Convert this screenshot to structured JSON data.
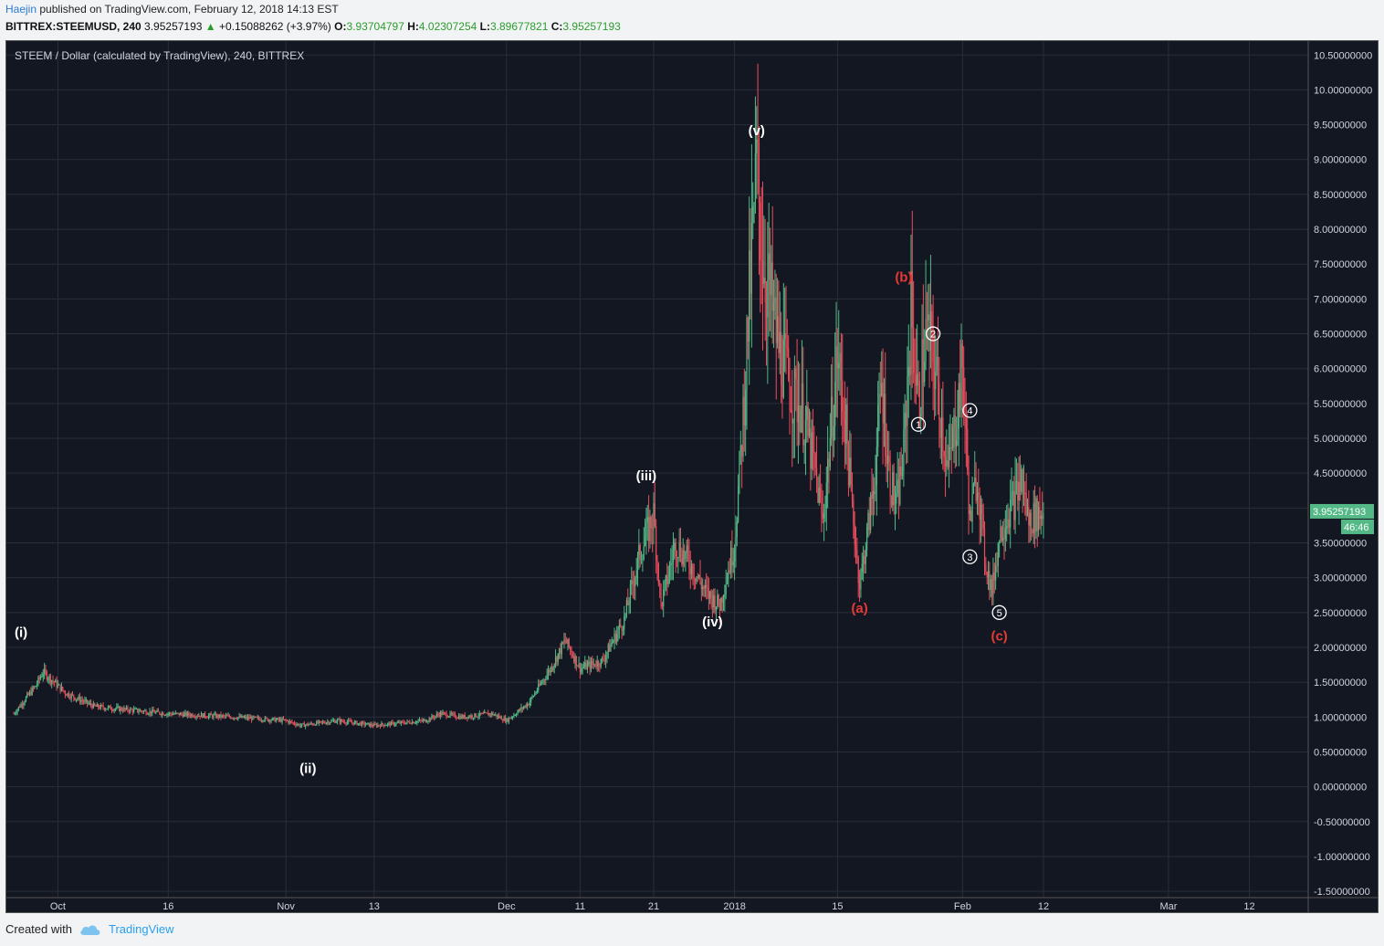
{
  "header": {
    "author": "Haejin",
    "published_text": "published on TradingView.com, February 12, 2018 14:13 EST"
  },
  "ohlc": {
    "symbol": "BITTREX:STEEMUSD, 240",
    "last": "3.95257193",
    "arrow": "▲",
    "change": "+0.15088262 (+3.97%)",
    "o_label": "O:",
    "o": "3.93704797",
    "h_label": "H:",
    "h": "4.02307254",
    "l_label": "L:",
    "l": "3.89677821",
    "c_label": "C:",
    "c": "3.95257193"
  },
  "footer": {
    "created_with": "Created with",
    "brand": "TradingView",
    "logo_icon": "tradingview-cloud-icon"
  },
  "colors": {
    "background": "#131722",
    "grid": "#2a2e39",
    "up": "#53b987",
    "down": "#eb4d5c",
    "wave_white": "#ffffff",
    "wave_red": "#e53935",
    "price_tag": "#53b987"
  },
  "chart_data": {
    "type": "candlestick",
    "title": "STEEM / Dollar (calculated by TradingView), 240, BITTREX",
    "ylim": [
      -1.8,
      10.7
    ],
    "y_ticks": [
      "10.50000000",
      "10.00000000",
      "9.50000000",
      "9.00000000",
      "8.50000000",
      "8.00000000",
      "7.50000000",
      "7.00000000",
      "6.50000000",
      "6.00000000",
      "5.50000000",
      "5.00000000",
      "4.50000000",
      "4.00000000",
      "3.50000000",
      "3.00000000",
      "2.50000000",
      "2.00000000",
      "1.50000000",
      "1.00000000",
      "0.50000000",
      "0.00000000",
      "-0.50000000",
      "-1.00000000",
      "-1.50000000"
    ],
    "x_ticks": [
      {
        "label": "Oct",
        "date": "2017-10-01"
      },
      {
        "label": "16",
        "date": "2017-10-16"
      },
      {
        "label": "Nov",
        "date": "2017-11-01"
      },
      {
        "label": "13",
        "date": "2017-11-13"
      },
      {
        "label": "Dec",
        "date": "2017-12-01"
      },
      {
        "label": "11",
        "date": "2017-12-11"
      },
      {
        "label": "21",
        "date": "2017-12-21"
      },
      {
        "label": "2018",
        "date": "2018-01-01"
      },
      {
        "label": "15",
        "date": "2018-01-15"
      },
      {
        "label": "Feb",
        "date": "2018-02-01"
      },
      {
        "label": "12",
        "date": "2018-02-12"
      },
      {
        "label": "Mar",
        "date": "2018-03-01"
      },
      {
        "label": "12",
        "date": "2018-03-12"
      }
    ],
    "price_path": [
      [
        "2017-09-25",
        1.05
      ],
      [
        "2017-09-28",
        1.45
      ],
      [
        "2017-09-29",
        1.65
      ],
      [
        "2017-10-02",
        1.35
      ],
      [
        "2017-10-06",
        1.15
      ],
      [
        "2017-10-16",
        1.05
      ],
      [
        "2017-10-25",
        1.0
      ],
      [
        "2017-11-01",
        0.95
      ],
      [
        "2017-11-03",
        0.88
      ],
      [
        "2017-11-08",
        0.95
      ],
      [
        "2017-11-13",
        0.88
      ],
      [
        "2017-11-20",
        0.95
      ],
      [
        "2017-11-22",
        1.05
      ],
      [
        "2017-11-25",
        1.0
      ],
      [
        "2017-11-29",
        1.05
      ],
      [
        "2017-12-01",
        0.95
      ],
      [
        "2017-12-04",
        1.2
      ],
      [
        "2017-12-07",
        1.7
      ],
      [
        "2017-12-09",
        2.1
      ],
      [
        "2017-12-11",
        1.7
      ],
      [
        "2017-12-14",
        1.8
      ],
      [
        "2017-12-17",
        2.4
      ],
      [
        "2017-12-19",
        3.3
      ],
      [
        "2017-12-21",
        3.9
      ],
      [
        "2017-12-22",
        2.6
      ],
      [
        "2017-12-24",
        3.5
      ],
      [
        "2017-12-26",
        3.2
      ],
      [
        "2017-12-28",
        2.8
      ],
      [
        "2017-12-30",
        2.6
      ],
      [
        "2018-01-01",
        3.5
      ],
      [
        "2018-01-02",
        5.0
      ],
      [
        "2018-01-03",
        7.0
      ],
      [
        "2018-01-04",
        8.8
      ],
      [
        "2018-01-05",
        7.5
      ],
      [
        "2018-01-07",
        6.3
      ],
      [
        "2018-01-09",
        5.6
      ],
      [
        "2018-01-10",
        5.5
      ],
      [
        "2018-01-12",
        4.5
      ],
      [
        "2018-01-13",
        3.8
      ],
      [
        "2018-01-14",
        5.0
      ],
      [
        "2018-01-15",
        6.2
      ],
      [
        "2018-01-16",
        5.3
      ],
      [
        "2018-01-17",
        4.0
      ],
      [
        "2018-01-18",
        2.9
      ],
      [
        "2018-01-19",
        3.6
      ],
      [
        "2018-01-20",
        4.4
      ],
      [
        "2018-01-21",
        5.8
      ],
      [
        "2018-01-22",
        4.5
      ],
      [
        "2018-01-23",
        4.0
      ],
      [
        "2018-01-24",
        4.8
      ],
      [
        "2018-01-25",
        6.8
      ],
      [
        "2018-01-26",
        5.5
      ],
      [
        "2018-01-27",
        6.5
      ],
      [
        "2018-01-28",
        6.2
      ],
      [
        "2018-01-29",
        5.4
      ],
      [
        "2018-01-30",
        4.5
      ],
      [
        "2018-01-31",
        5.2
      ],
      [
        "2018-02-01",
        6.0
      ],
      [
        "2018-02-02",
        3.8
      ],
      [
        "2018-02-03",
        4.5
      ],
      [
        "2018-02-04",
        3.3
      ],
      [
        "2018-02-05",
        2.8
      ],
      [
        "2018-02-06",
        3.6
      ],
      [
        "2018-02-07",
        3.9
      ],
      [
        "2018-02-08",
        4.1
      ],
      [
        "2018-02-09",
        4.4
      ],
      [
        "2018-02-10",
        3.8
      ],
      [
        "2018-02-11",
        3.9
      ],
      [
        "2018-02-12",
        3.95
      ]
    ],
    "wave_labels": [
      {
        "text": "(i)",
        "date": "2017-09-26",
        "y": 2.15,
        "color": "white"
      },
      {
        "text": "(ii)",
        "date": "2017-11-04",
        "y": 0.2,
        "color": "white"
      },
      {
        "text": "(iii)",
        "date": "2017-12-20",
        "y": 4.4,
        "color": "white"
      },
      {
        "text": "(iv)",
        "date": "2017-12-29",
        "y": 2.3,
        "color": "white"
      },
      {
        "text": "(v)",
        "date": "2018-01-04",
        "y": 9.35,
        "color": "white"
      },
      {
        "text": "(a)",
        "date": "2018-01-18",
        "y": 2.5,
        "color": "red"
      },
      {
        "text": "(b)",
        "date": "2018-01-24",
        "y": 7.25,
        "color": "red"
      },
      {
        "text": "(c)",
        "date": "2018-02-06",
        "y": 2.1,
        "color": "red"
      }
    ],
    "circle_labels": [
      {
        "text": "1",
        "date": "2018-01-26",
        "y": 5.2
      },
      {
        "text": "2",
        "date": "2018-01-28",
        "y": 6.5
      },
      {
        "text": "3",
        "date": "2018-02-02",
        "y": 3.3
      },
      {
        "text": "4",
        "date": "2018-02-02",
        "y": 5.4
      },
      {
        "text": "5",
        "date": "2018-02-06",
        "y": 2.5
      }
    ],
    "last_price": "3.95257193",
    "countdown": "46:46",
    "grid": true
  }
}
